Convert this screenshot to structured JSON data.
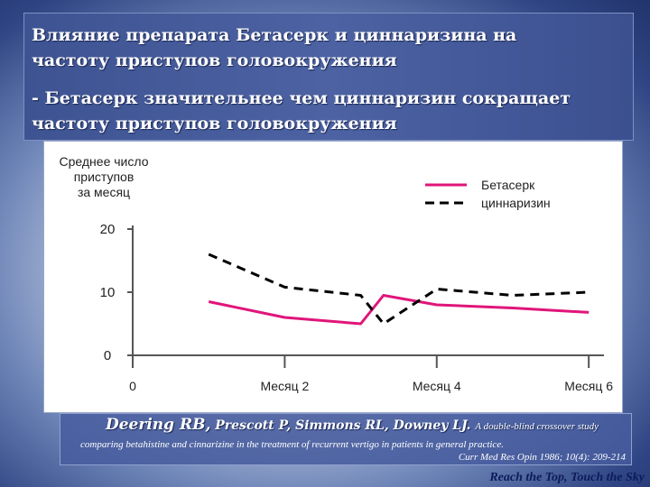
{
  "slide": {
    "title_line1": "Влияние препарата Бетасерк и циннаризина на",
    "title_line2": "частоту приступов головокружения",
    "subtitle_line1": "- Бетасерк значительнее чем циннаризин сокращает",
    "subtitle_line2": "частоту приступов головокружения"
  },
  "reference": {
    "authors_lead": "Deering RB,",
    "authors_rest": " Prescott P, Simmons RL, Downey LJ.",
    "title_start": "A double-blind crossover study",
    "line2": "comparing betahistine and cinnarizine in the treatment of recurrent vertigo in patients in general practice.",
    "line3": "Curr Med Res Opin 1986; 10(4): 209-214"
  },
  "tagline": "Reach the Top, Touch the Sky",
  "chart_data": {
    "type": "line",
    "ylabel": "Среднее число приступов за месяц",
    "ylabel_lines": [
      "Среднее число",
      "приступов",
      "за месяц"
    ],
    "ylim": [
      0,
      20
    ],
    "yticks": [
      "0",
      "10",
      "20"
    ],
    "xlim": [
      0,
      6.2
    ],
    "xticks": [
      {
        "x": 0,
        "label": "0"
      },
      {
        "x": 2,
        "label": "Месяц 2"
      },
      {
        "x": 4,
        "label": "Месяц 4"
      },
      {
        "x": 6,
        "label": "Месяц 6"
      }
    ],
    "grid": false,
    "legend_position": "top-right",
    "series": [
      {
        "name": "Бетасерк",
        "color": "#e0157a",
        "dash": "solid",
        "points": [
          [
            1,
            8.5
          ],
          [
            2,
            6
          ],
          [
            3,
            5
          ],
          [
            3.3,
            9.5
          ],
          [
            4,
            8
          ],
          [
            5,
            7.5
          ],
          [
            6,
            6.8
          ]
        ]
      },
      {
        "name": "циннаризин",
        "color": "#000000",
        "dash": "dashed",
        "points": [
          [
            1,
            16
          ],
          [
            2,
            10.8
          ],
          [
            3,
            9.5
          ],
          [
            3.3,
            5
          ],
          [
            4,
            10.5
          ],
          [
            5,
            9.5
          ],
          [
            6,
            10
          ]
        ]
      }
    ]
  }
}
